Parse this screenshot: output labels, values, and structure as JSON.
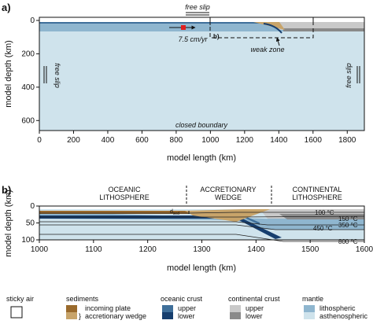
{
  "panel_a": {
    "label": "a)",
    "top_boundary": "free slip",
    "left_boundary": "free slip",
    "right_boundary": "free slip",
    "bottom_boundary": "closed boundary",
    "velocity": "7.5 cm/yr",
    "inset_ref": "b)",
    "weak_zone": "weak zone",
    "xlabel": "model length (km)",
    "ylabel": "model depth (km)",
    "xticks": [
      "0",
      "200",
      "400",
      "600",
      "800",
      "1000",
      "1200",
      "1400",
      "1600",
      "1800"
    ],
    "yticks": [
      "0",
      "200",
      "400",
      "600"
    ],
    "xlim": [
      0,
      1900
    ],
    "ylim": [
      0,
      660
    ]
  },
  "panel_b": {
    "label": "b)",
    "region_oceanic": "OCEANIC\nLITHOSPHERE",
    "region_wedge": "ACCRETIONARY\nWEDGE",
    "region_continental": "CONTINENTAL\nLITHOSPHERE",
    "dsed_main": "d",
    "dsed_sub": "sed",
    "isotherms": [
      "100 °C",
      "150 °C",
      "350 °C",
      "450 °C",
      "800 °C"
    ],
    "xlabel": "model length (km)",
    "ylabel": "model depth (km)",
    "xticks": [
      "1000",
      "1100",
      "1200",
      "1300",
      "1400",
      "1500",
      "1600"
    ],
    "yticks": [
      "0",
      "50",
      "100"
    ],
    "xlim": [
      1000,
      1600
    ],
    "ylim": [
      0,
      100
    ]
  },
  "legend": {
    "sticky_air": "sticky air",
    "sediments_title": "sediments",
    "sed_incoming": "incoming plate",
    "sed_wedge": "accretionary wedge",
    "oceanic_title": "oceanic crust",
    "oc_upper": "upper",
    "oc_lower": "lower",
    "continental_title": "continental crust",
    "cc_upper": "upper",
    "cc_lower": "lower",
    "mantle_title": "mantle",
    "m_litho": "lithospheric",
    "m_astheno": "asthenospheric"
  },
  "colors": {
    "asthenosphere": "#cfe3ec",
    "lithosphere": "#8fb6cf",
    "oceanic_upper": "#3f6f9a",
    "oceanic_lower": "#163e6e",
    "cont_upper": "#c9c9c9",
    "cont_lower": "#8a8a8a",
    "sed_incoming": "#9a6a2c",
    "sed_wedge": "#c8a46a",
    "velocity_marker": "#e02020"
  }
}
